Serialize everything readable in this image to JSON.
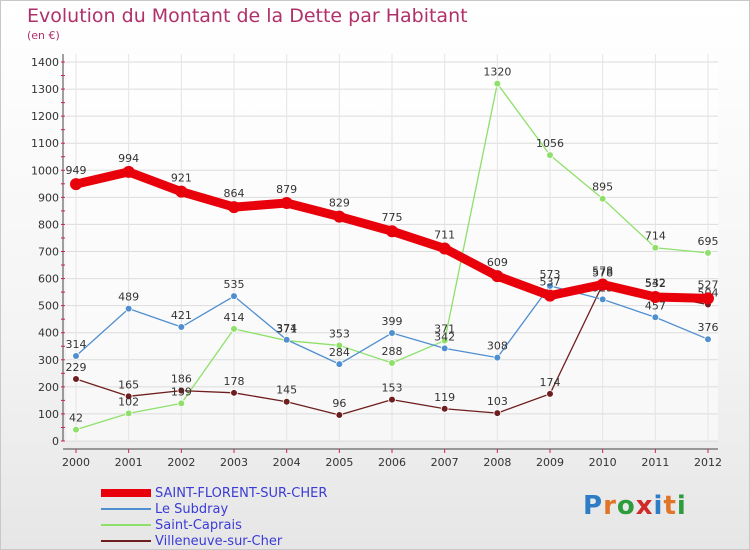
{
  "title": "Evolution du Montant de la Dette par Habitant",
  "subtitle": "(en €)",
  "logo": {
    "text": "Proxiti",
    "letter_colors": [
      "#2e7bc6",
      "#e0752a",
      "#2e9b3c",
      "#d12a2a",
      "#2e7bc6",
      "#e0752a",
      "#2e9b3c"
    ]
  },
  "chart_data": {
    "type": "line",
    "x": [
      "2000",
      "2001",
      "2002",
      "2003",
      "2004",
      "2005",
      "2006",
      "2007",
      "2008",
      "2009",
      "2010",
      "2011",
      "2012"
    ],
    "yticks": [
      "0",
      "100",
      "200",
      "300",
      "400",
      "500",
      "600",
      "700",
      "800",
      "900",
      "1000",
      "1100",
      "1200",
      "1300",
      "1400"
    ],
    "ylim": [
      0,
      1400
    ],
    "grid": true,
    "legend_position": "bottom-left",
    "series": [
      {
        "name": "SAINT-FLORENT-SUR-CHER",
        "color": "#e8000b",
        "values": [
          949,
          994,
          921,
          864,
          879,
          829,
          775,
          711,
          609,
          537,
          578,
          532,
          527
        ]
      },
      {
        "name": "Le Subdray",
        "color": "#4f8fd0",
        "values": [
          314,
          489,
          421,
          535,
          374,
          284,
          399,
          342,
          308,
          573,
          523,
          457,
          376
        ]
      },
      {
        "name": "Saint-Caprais",
        "color": "#8ee06a",
        "values": [
          42,
          102,
          139,
          414,
          371,
          353,
          288,
          371,
          1320,
          1056,
          895,
          714,
          695
        ]
      },
      {
        "name": "Villeneuve-sur-Cher",
        "color": "#6e1e1e",
        "values": [
          229,
          165,
          186,
          178,
          145,
          96,
          153,
          119,
          103,
          174,
          578,
          542,
          504
        ]
      }
    ]
  }
}
